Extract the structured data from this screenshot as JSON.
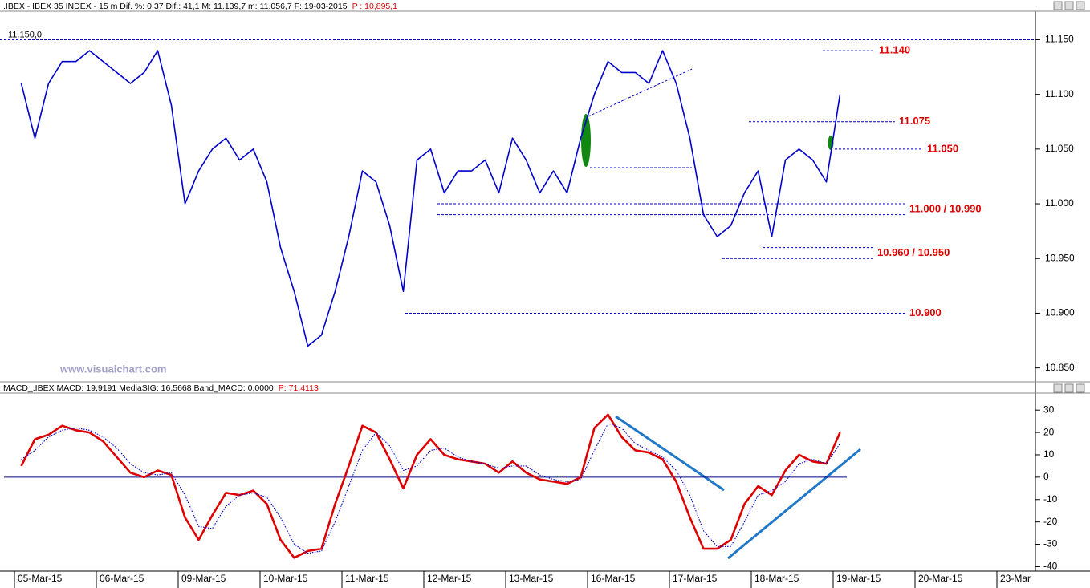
{
  "chart_data": [
    {
      "type": "line",
      "title": ".IBEX - IBEX 35 INDEX -  15 m Dif. %: 0,37 Dif.: 41,1 M: 11.139,7 m: 11.056,7 F: 19-03-2015",
      "title_extra": "P : 10,895,1",
      "watermark": "www.visualchart.com",
      "reference_line": {
        "value": 11.15,
        "label": "11.150,0"
      },
      "categories": [
        "05-Mar-15",
        null,
        null,
        null,
        null,
        null,
        "06-Mar-15",
        null,
        null,
        null,
        null,
        null,
        "09-Mar-15",
        null,
        null,
        null,
        null,
        null,
        "10-Mar-15",
        null,
        null,
        null,
        null,
        null,
        "11-Mar-15",
        null,
        null,
        null,
        null,
        null,
        "12-Mar-15",
        null,
        null,
        null,
        null,
        null,
        "13-Mar-15",
        null,
        null,
        null,
        null,
        null,
        "16-Mar-15",
        null,
        null,
        null,
        null,
        null,
        "17-Mar-15",
        null,
        null,
        null,
        null,
        null,
        "18-Mar-15",
        null,
        null,
        null,
        null,
        null,
        "19-Mar-15",
        null,
        null,
        null,
        null,
        null,
        "20-Mar-15",
        null,
        null,
        null,
        null,
        null,
        "23-Mar"
      ],
      "series": [
        {
          "color": "#0000cc",
          "values": [
            11.11,
            11.06,
            11.11,
            11.13,
            11.13,
            11.14,
            11.13,
            11.12,
            11.11,
            11.12,
            11.14,
            11.09,
            11.0,
            11.03,
            11.05,
            11.06,
            11.04,
            11.05,
            11.02,
            10.96,
            10.92,
            10.87,
            10.88,
            10.92,
            10.97,
            11.03,
            11.02,
            10.98,
            10.92,
            11.04,
            11.05,
            11.01,
            11.03,
            11.03,
            11.04,
            11.01,
            11.06,
            11.04,
            11.01,
            11.03,
            11.01,
            11.06,
            11.1,
            11.13,
            11.12,
            11.12,
            11.11,
            11.14,
            11.11,
            11.06,
            10.99,
            10.97,
            10.98,
            11.01,
            11.03,
            10.97,
            11.04,
            11.05,
            11.04,
            11.02,
            11.1,
            null,
            null,
            null,
            null,
            null,
            null,
            null,
            null,
            null,
            null,
            null,
            null
          ]
        }
      ],
      "levels": [
        {
          "label": "11.140",
          "values": [
            11.14
          ]
        },
        {
          "label": "11.075",
          "values": [
            11.075
          ]
        },
        {
          "label": "11.050",
          "values": [
            11.05
          ]
        },
        {
          "label": "11.000 / 10.990",
          "values": [
            11.0,
            10.99
          ]
        },
        {
          "label": "10.960 / 10.950",
          "values": [
            10.96,
            10.95
          ]
        },
        {
          "label": "10.900",
          "values": [
            10.9
          ]
        }
      ],
      "level_color": "#dd0000",
      "ylim": [
        10.838,
        11.176
      ],
      "yticks": [
        {
          "value": 10.85,
          "label": "10.850"
        },
        {
          "value": 10.9,
          "label": "10.900"
        },
        {
          "value": 10.95,
          "label": "10.950"
        },
        {
          "value": 11.0,
          "label": "11.000"
        },
        {
          "value": 11.05,
          "label": "11.050"
        },
        {
          "value": 11.1,
          "label": "11.100"
        },
        {
          "value": 11.15,
          "label": "11.150"
        }
      ]
    },
    {
      "type": "line",
      "title": "MACD_.IBEX MACD: 19,9191 MediaSIG: 16,5668 Band_MACD: 0,0000",
      "title_extra": "P: 71,4113",
      "series": [
        {
          "color": "#dd0000",
          "values": [
            5,
            17,
            19,
            23,
            21,
            20,
            16,
            9,
            2,
            0,
            3,
            1,
            -18,
            -28,
            -17,
            -7,
            -8,
            -6,
            -12,
            -28,
            -36,
            -33,
            -32,
            -12,
            5,
            23,
            20,
            8,
            -5,
            10,
            17,
            10,
            8,
            7,
            6,
            2,
            7,
            2,
            -1,
            -2,
            -3,
            0,
            22,
            28,
            18,
            12,
            11,
            8,
            -2,
            -18,
            -32,
            -32,
            -28,
            -12,
            -4,
            -8,
            3,
            10,
            7,
            6,
            20,
            null,
            null,
            null,
            null,
            null,
            null,
            null,
            null,
            null,
            null,
            null,
            null
          ]
        },
        {
          "color": "#0000cc",
          "values": [
            8,
            12,
            18,
            21,
            22,
            21,
            18,
            13,
            6,
            2,
            1,
            2,
            -8,
            -22,
            -23,
            -13,
            -8,
            -7,
            -9,
            -18,
            -30,
            -34,
            -33,
            -20,
            -4,
            12,
            20,
            14,
            3,
            5,
            12,
            13,
            9,
            7,
            6,
            4,
            5,
            5,
            1,
            -1,
            -2,
            -1,
            12,
            24,
            22,
            15,
            12,
            9,
            3,
            -8,
            -24,
            -31,
            -31,
            -20,
            -8,
            -6,
            -2,
            6,
            8,
            6,
            15,
            null,
            null,
            null,
            null,
            null,
            null,
            null,
            null,
            null,
            null,
            null,
            null
          ]
        }
      ],
      "baseline": 0,
      "ylim": [
        -42,
        37.6
      ],
      "yticks": [
        30,
        20,
        10,
        0,
        -10,
        -20,
        -30,
        -40
      ]
    }
  ]
}
